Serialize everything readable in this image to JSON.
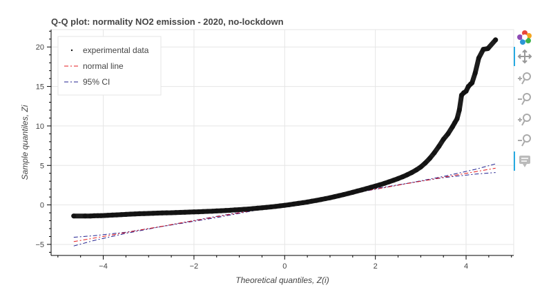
{
  "chart_data": {
    "type": "scatter",
    "title": "Q-Q plot: normality NO2 emission - 2020, no-lockdown",
    "xlabel": "Theoretical quantiles, Z(i)",
    "ylabel": "Sample quantiles, Zi",
    "xlim": [
      -5.15,
      5.05
    ],
    "ylim": [
      -6.4,
      22.2
    ],
    "xticks": [
      -4,
      -2,
      0,
      2,
      4
    ],
    "yticks": [
      -5,
      0,
      5,
      10,
      15,
      20
    ],
    "grid": true,
    "legend_position": "top-left",
    "legend": [
      {
        "label": "experimental data",
        "style": "dot",
        "color": "#000000"
      },
      {
        "label": "normal line",
        "style": "dashdot",
        "color": "#e41a1c"
      },
      {
        "label": "95% CI",
        "style": "dashdot",
        "color": "#1f1f8f"
      }
    ],
    "series": [
      {
        "name": "experimental data",
        "kind": "points",
        "color": "#111111",
        "x": [
          -4.65,
          -4.4,
          -4.28,
          -4.2,
          -4.12,
          -4.05,
          -3.97,
          -3.9,
          -3.8,
          -3.7,
          -3.6,
          -3.5,
          -3.4,
          -3.3,
          -3.2,
          -3.1,
          -3.0,
          -2.9,
          -2.8,
          -2.7,
          -2.6,
          -2.5,
          -2.4,
          -2.3,
          -2.2,
          -2.1,
          -2.0,
          -1.9,
          -1.8,
          -1.7,
          -1.6,
          -1.5,
          -1.4,
          -1.3,
          -1.2,
          -1.1,
          -1.0,
          -0.9,
          -0.8,
          -0.7,
          -0.6,
          -0.5,
          -0.4,
          -0.3,
          -0.2,
          -0.1,
          0.0,
          0.1,
          0.2,
          0.3,
          0.4,
          0.5,
          0.6,
          0.7,
          0.8,
          0.9,
          1.0,
          1.1,
          1.2,
          1.3,
          1.4,
          1.5,
          1.6,
          1.7,
          1.8,
          1.9,
          2.0,
          2.1,
          2.2,
          2.3,
          2.4,
          2.5,
          2.6,
          2.7,
          2.8,
          2.9,
          3.0,
          3.1,
          3.2,
          3.3,
          3.4,
          3.5,
          3.6,
          3.7,
          3.75,
          3.8,
          3.85,
          3.9,
          3.95,
          4.0,
          4.05,
          4.1,
          4.13,
          4.2,
          4.28,
          4.38,
          4.48,
          4.65
        ],
        "y": [
          -1.4,
          -1.4,
          -1.4,
          -1.38,
          -1.37,
          -1.36,
          -1.34,
          -1.32,
          -1.29,
          -1.26,
          -1.23,
          -1.2,
          -1.17,
          -1.14,
          -1.12,
          -1.1,
          -1.08,
          -1.06,
          -1.04,
          -1.02,
          -1.0,
          -0.99,
          -0.97,
          -0.95,
          -0.93,
          -0.91,
          -0.89,
          -0.87,
          -0.85,
          -0.82,
          -0.8,
          -0.77,
          -0.74,
          -0.71,
          -0.68,
          -0.64,
          -0.6,
          -0.56,
          -0.52,
          -0.47,
          -0.42,
          -0.37,
          -0.31,
          -0.25,
          -0.19,
          -0.12,
          -0.05,
          0.03,
          0.11,
          0.19,
          0.28,
          0.37,
          0.47,
          0.57,
          0.68,
          0.79,
          0.91,
          1.04,
          1.17,
          1.31,
          1.45,
          1.6,
          1.75,
          1.9,
          2.06,
          2.22,
          2.38,
          2.55,
          2.73,
          2.92,
          3.12,
          3.33,
          3.56,
          3.81,
          4.09,
          4.42,
          4.8,
          5.3,
          5.9,
          6.6,
          7.4,
          8.3,
          9.0,
          9.9,
          10.4,
          10.9,
          12.0,
          13.9,
          14.2,
          14.4,
          15.0,
          15.3,
          15.45,
          16.7,
          18.6,
          19.7,
          19.8,
          20.9
        ]
      },
      {
        "name": "normal line",
        "kind": "line",
        "color": "#e41a1c",
        "x": [
          -4.65,
          4.65
        ],
        "y": [
          -4.65,
          4.65
        ]
      },
      {
        "name": "95% CI",
        "kind": "line",
        "color": "#1f1f8f",
        "x": [
          -4.65,
          -4.2,
          -3.5,
          -2.5,
          -1.5,
          1.5,
          2.5,
          3.5,
          4.2,
          4.65
        ],
        "y": [
          -4.1,
          -3.9,
          -3.45,
          -2.55,
          -1.6,
          1.6,
          2.55,
          3.45,
          3.9,
          4.1
        ]
      },
      {
        "name": "95% CI",
        "kind": "line",
        "color": "#1f1f8f",
        "x": [
          -4.65,
          -4.2,
          -3.5,
          -2.5,
          -1.5,
          1.5,
          2.5,
          3.5,
          4.2,
          4.65
        ],
        "y": [
          -5.2,
          -4.5,
          -3.6,
          -2.5,
          -1.45,
          1.45,
          2.5,
          3.6,
          4.5,
          5.2
        ]
      }
    ]
  },
  "toolbar": {
    "tools": [
      "bokeh-logo-icon",
      "pan-icon",
      "zoom-in-icon",
      "zoom-out-icon",
      "x-zoom-in-icon",
      "x-zoom-out-icon",
      "hover-icon"
    ]
  }
}
